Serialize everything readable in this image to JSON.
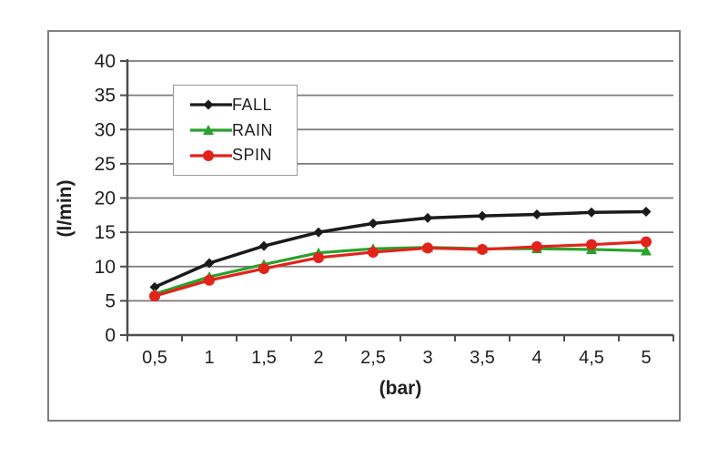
{
  "figure": {
    "background": "#ffffff",
    "frame_border_color": "#7f7f7f",
    "gridline_color": "#7a7a7a",
    "axis_color": "#4d4d4d",
    "text_color": "#1f1f1f"
  },
  "chart_data": {
    "type": "line",
    "title": "",
    "xlabel": "(bar)",
    "ylabel": "(l/min)",
    "categories": [
      "0,5",
      "1",
      "1,5",
      "2",
      "2,5",
      "3",
      "3,5",
      "4",
      "4,5",
      "5"
    ],
    "x_values": [
      0.5,
      1,
      1.5,
      2,
      2.5,
      3,
      3.5,
      4,
      4.5,
      5
    ],
    "ylim": [
      0,
      40
    ],
    "ytick_step": 5,
    "y_tick_labels": [
      "40",
      "35",
      "30",
      "25",
      "20",
      "15",
      "10",
      "5",
      "0"
    ],
    "grid": "horizontal",
    "legend_position": "upper-left-inside",
    "series": [
      {
        "name": "FALL",
        "color": "#1a1a1a",
        "marker": "diamond",
        "values": [
          7.0,
          10.5,
          13.0,
          15.0,
          16.3,
          17.1,
          17.4,
          17.6,
          17.9,
          18.0
        ]
      },
      {
        "name": "RAIN",
        "color": "#28a22c",
        "marker": "triangle",
        "values": [
          6.0,
          8.5,
          10.3,
          12.0,
          12.6,
          12.8,
          12.6,
          12.6,
          12.5,
          12.3
        ]
      },
      {
        "name": "SPIN",
        "color": "#e2231a",
        "marker": "circle",
        "values": [
          5.7,
          8.0,
          9.7,
          11.3,
          12.1,
          12.7,
          12.5,
          12.9,
          13.2,
          13.6
        ]
      }
    ]
  }
}
